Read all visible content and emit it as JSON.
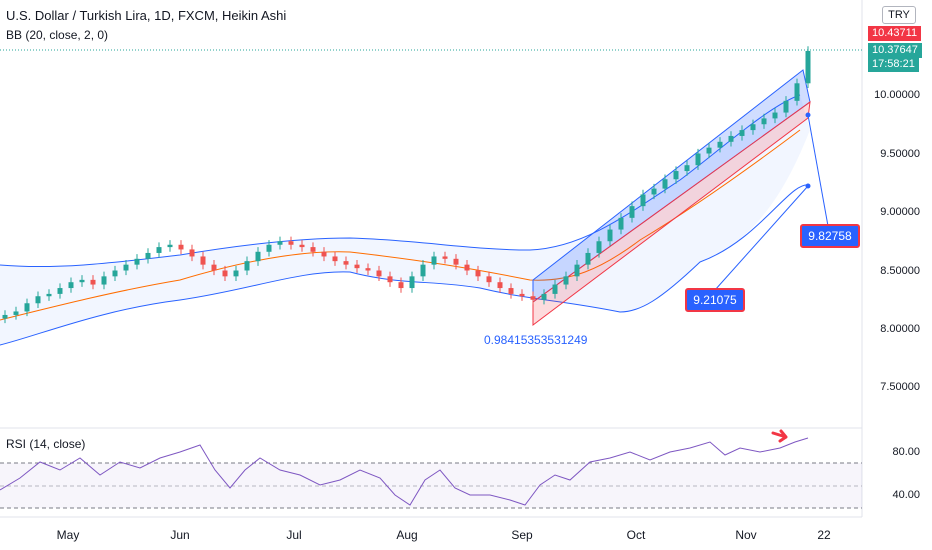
{
  "header": {
    "title": "U.S. Dollar / Turkish Lira, 1D, FXCM, Heikin Ashi",
    "indicator": "BB (20, close, 2, 0)",
    "currency_button": "TRY"
  },
  "price_axis": {
    "ticks": [
      "10.00000",
      "9.50000",
      "9.00000",
      "8.50000",
      "8.00000",
      "7.50000"
    ],
    "last_price_high": "10.43711",
    "last_price": "10.37647",
    "countdown": "17:58:21"
  },
  "rsi_pane": {
    "label": "RSI (14, close)",
    "ticks": [
      "80.00",
      "40.00"
    ]
  },
  "time_axis": {
    "ticks": [
      "May",
      "Jun",
      "Jul",
      "Aug",
      "Sep",
      "Oct",
      "Nov",
      "22"
    ]
  },
  "annotations": {
    "channel_ratio": "0.98415353531249",
    "upper_callout": "9.82758",
    "lower_callout": "9.21075"
  },
  "colors": {
    "up_candle": "#26a69a",
    "down_candle": "#ef5350",
    "bb_band": "#2962ff",
    "bb_basis": "#ff6d00",
    "rsi_line": "#7e57c2",
    "channel": "#2962ff",
    "arrow": "#f23645"
  },
  "chart_data": {
    "type": "candlestick",
    "symbol": "USDTRY",
    "timeframe": "1D",
    "close_series": [
      8.12,
      8.15,
      8.22,
      8.28,
      8.3,
      8.35,
      8.4,
      8.42,
      8.38,
      8.45,
      8.5,
      8.55,
      8.6,
      8.65,
      8.7,
      8.72,
      8.68,
      8.62,
      8.55,
      8.5,
      8.45,
      8.5,
      8.58,
      8.66,
      8.72,
      8.75,
      8.72,
      8.7,
      8.66,
      8.62,
      8.58,
      8.55,
      8.52,
      8.5,
      8.45,
      8.4,
      8.35,
      8.45,
      8.55,
      8.62,
      8.6,
      8.55,
      8.5,
      8.45,
      8.4,
      8.35,
      8.3,
      8.28,
      8.25,
      8.3,
      8.38,
      8.45,
      8.55,
      8.65,
      8.75,
      8.85,
      8.95,
      9.05,
      9.15,
      9.2,
      9.28,
      9.35,
      9.4,
      9.5,
      9.55,
      9.6,
      9.65,
      9.7,
      9.75,
      9.8,
      9.85,
      9.95,
      10.1,
      10.37647
    ]
  }
}
